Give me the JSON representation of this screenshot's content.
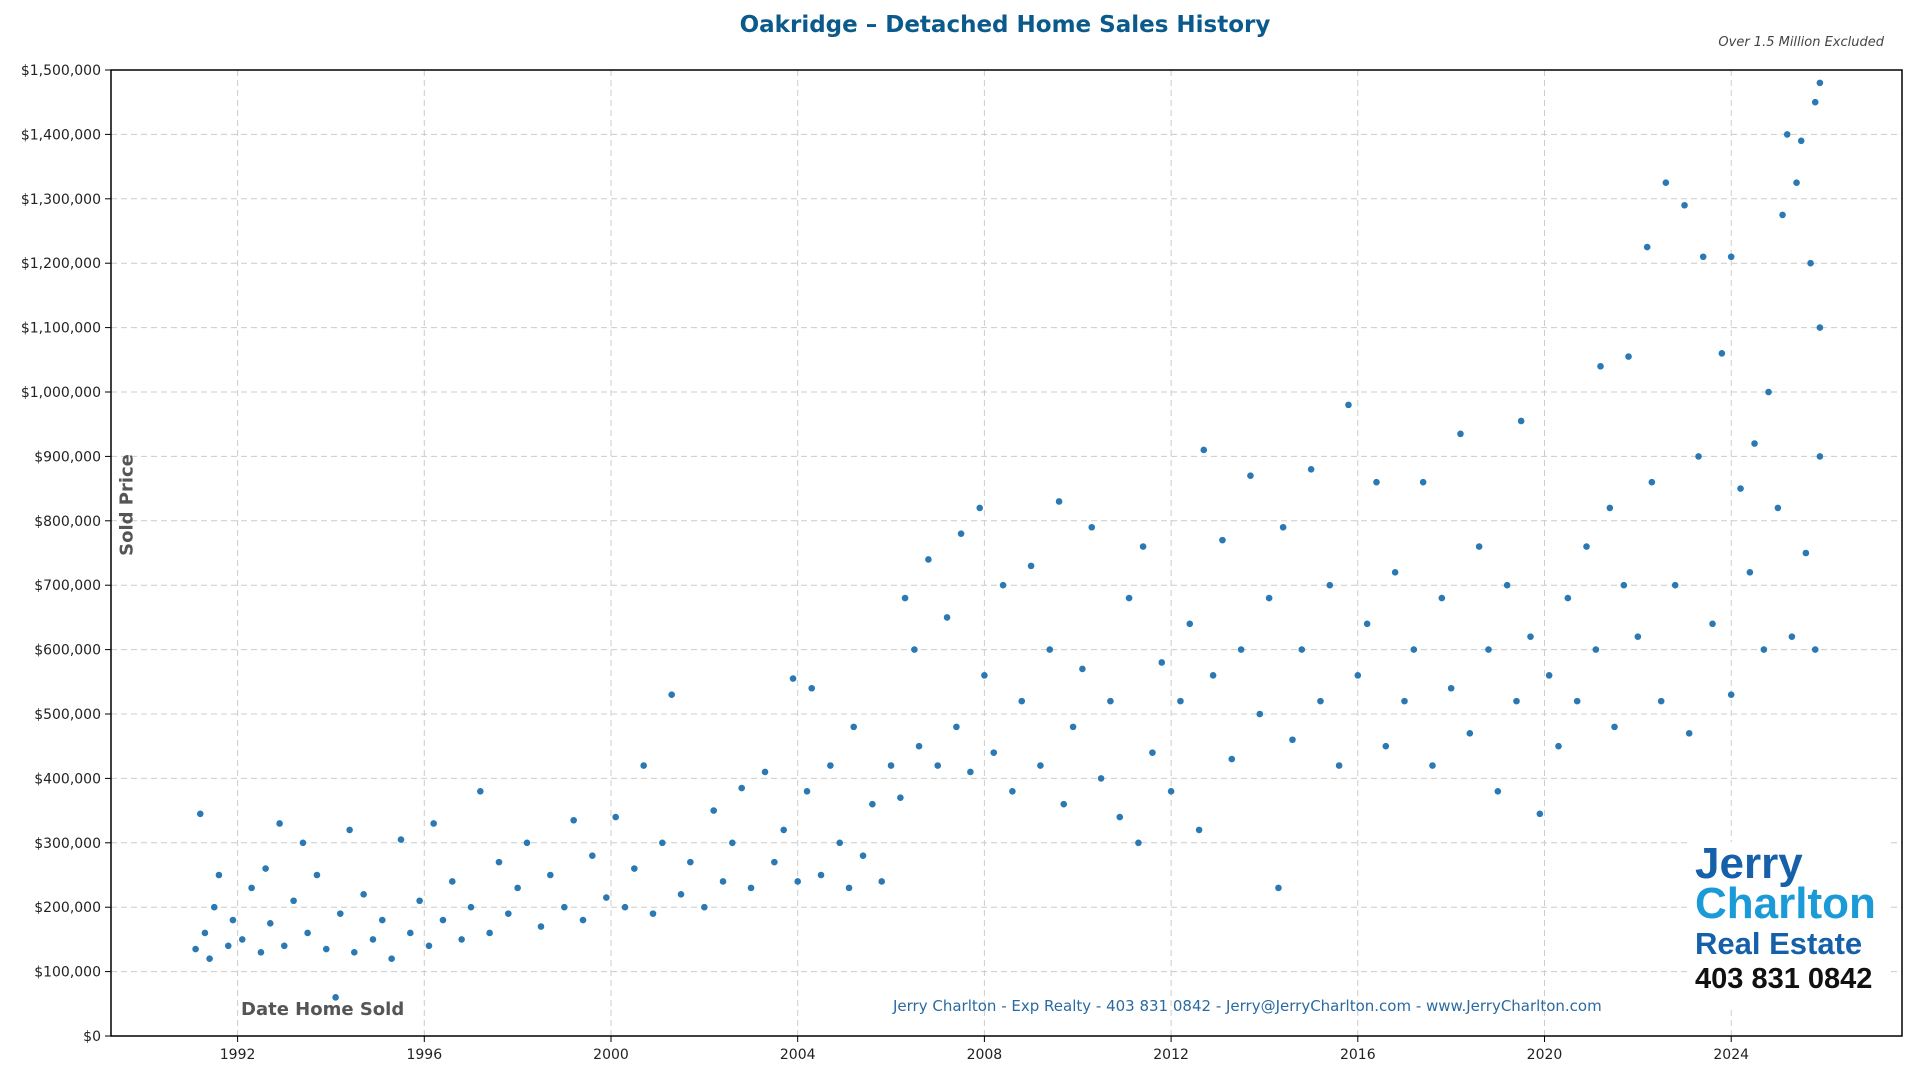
{
  "chart_data": {
    "type": "scatter",
    "title": "Oakridge – Detached Home Sales History",
    "subtitle": "Over 1.5 Million Excluded",
    "xlabel": "Date Home Sold",
    "ylabel": "Sold Price",
    "xlim": [
      1991,
      2027
    ],
    "ylim": [
      0,
      1500000
    ],
    "x_ticks": [
      1992,
      1996,
      2000,
      2004,
      2008,
      2012,
      2016,
      2020,
      2024
    ],
    "y_ticks": [
      "$0",
      "$100,000",
      "$200,000",
      "$300,000",
      "$400,000",
      "$500,000",
      "$600,000",
      "$700,000",
      "$800,000",
      "$900,000",
      "$1,000,000",
      "$1,100,000",
      "$1,200,000",
      "$1,300,000",
      "$1,400,000",
      "$1,500,000"
    ],
    "grid": true,
    "color": "#2a78b4",
    "points": [
      [
        1991.1,
        135000
      ],
      [
        1991.2,
        345000
      ],
      [
        1991.3,
        160000
      ],
      [
        1991.4,
        120000
      ],
      [
        1991.5,
        200000
      ],
      [
        1991.6,
        250000
      ],
      [
        1991.8,
        140000
      ],
      [
        1991.9,
        180000
      ],
      [
        1992.1,
        150000
      ],
      [
        1992.3,
        230000
      ],
      [
        1992.5,
        130000
      ],
      [
        1992.6,
        260000
      ],
      [
        1992.7,
        175000
      ],
      [
        1992.9,
        330000
      ],
      [
        1993.0,
        140000
      ],
      [
        1993.2,
        210000
      ],
      [
        1993.4,
        300000
      ],
      [
        1993.5,
        160000
      ],
      [
        1993.7,
        250000
      ],
      [
        1993.9,
        135000
      ],
      [
        1994.1,
        60000
      ],
      [
        1994.2,
        190000
      ],
      [
        1994.4,
        320000
      ],
      [
        1994.5,
        130000
      ],
      [
        1994.7,
        220000
      ],
      [
        1994.9,
        150000
      ],
      [
        1995.1,
        180000
      ],
      [
        1995.3,
        120000
      ],
      [
        1995.5,
        305000
      ],
      [
        1995.7,
        160000
      ],
      [
        1995.9,
        210000
      ],
      [
        1996.1,
        140000
      ],
      [
        1996.2,
        330000
      ],
      [
        1996.4,
        180000
      ],
      [
        1996.6,
        240000
      ],
      [
        1996.8,
        150000
      ],
      [
        1997.0,
        200000
      ],
      [
        1997.2,
        380000
      ],
      [
        1997.4,
        160000
      ],
      [
        1997.6,
        270000
      ],
      [
        1997.8,
        190000
      ],
      [
        1998.0,
        230000
      ],
      [
        1998.2,
        300000
      ],
      [
        1998.5,
        170000
      ],
      [
        1998.7,
        250000
      ],
      [
        1999.0,
        200000
      ],
      [
        1999.2,
        335000
      ],
      [
        1999.4,
        180000
      ],
      [
        1999.6,
        280000
      ],
      [
        1999.9,
        215000
      ],
      [
        2000.1,
        340000
      ],
      [
        2000.3,
        200000
      ],
      [
        2000.5,
        260000
      ],
      [
        2000.7,
        420000
      ],
      [
        2000.9,
        190000
      ],
      [
        2001.1,
        300000
      ],
      [
        2001.3,
        530000
      ],
      [
        2001.5,
        220000
      ],
      [
        2001.7,
        270000
      ],
      [
        2002.0,
        200000
      ],
      [
        2002.2,
        350000
      ],
      [
        2002.4,
        240000
      ],
      [
        2002.6,
        300000
      ],
      [
        2002.8,
        385000
      ],
      [
        2003.0,
        230000
      ],
      [
        2003.3,
        410000
      ],
      [
        2003.5,
        270000
      ],
      [
        2003.7,
        320000
      ],
      [
        2003.9,
        555000
      ],
      [
        2004.0,
        240000
      ],
      [
        2004.2,
        380000
      ],
      [
        2004.3,
        540000
      ],
      [
        2004.5,
        250000
      ],
      [
        2004.7,
        420000
      ],
      [
        2004.9,
        300000
      ],
      [
        2005.1,
        230000
      ],
      [
        2005.2,
        480000
      ],
      [
        2005.4,
        280000
      ],
      [
        2005.6,
        360000
      ],
      [
        2005.8,
        240000
      ],
      [
        2006.0,
        420000
      ],
      [
        2006.2,
        370000
      ],
      [
        2006.3,
        680000
      ],
      [
        2006.5,
        600000
      ],
      [
        2006.6,
        450000
      ],
      [
        2006.8,
        740000
      ],
      [
        2007.0,
        420000
      ],
      [
        2007.2,
        650000
      ],
      [
        2007.4,
        480000
      ],
      [
        2007.5,
        780000
      ],
      [
        2007.7,
        410000
      ],
      [
        2007.9,
        820000
      ],
      [
        2008.0,
        560000
      ],
      [
        2008.2,
        440000
      ],
      [
        2008.4,
        700000
      ],
      [
        2008.6,
        380000
      ],
      [
        2008.8,
        520000
      ],
      [
        2009.0,
        730000
      ],
      [
        2009.2,
        420000
      ],
      [
        2009.4,
        600000
      ],
      [
        2009.6,
        830000
      ],
      [
        2009.7,
        360000
      ],
      [
        2009.9,
        480000
      ],
      [
        2010.1,
        570000
      ],
      [
        2010.3,
        790000
      ],
      [
        2010.5,
        400000
      ],
      [
        2010.7,
        520000
      ],
      [
        2010.9,
        340000
      ],
      [
        2011.1,
        680000
      ],
      [
        2011.3,
        300000
      ],
      [
        2011.4,
        760000
      ],
      [
        2011.6,
        440000
      ],
      [
        2011.8,
        580000
      ],
      [
        2012.0,
        380000
      ],
      [
        2012.2,
        520000
      ],
      [
        2012.4,
        640000
      ],
      [
        2012.6,
        320000
      ],
      [
        2012.7,
        910000
      ],
      [
        2012.9,
        560000
      ],
      [
        2013.1,
        770000
      ],
      [
        2013.3,
        430000
      ],
      [
        2013.5,
        600000
      ],
      [
        2013.7,
        870000
      ],
      [
        2013.9,
        500000
      ],
      [
        2014.1,
        680000
      ],
      [
        2014.3,
        230000
      ],
      [
        2014.4,
        790000
      ],
      [
        2014.6,
        460000
      ],
      [
        2014.8,
        600000
      ],
      [
        2015.0,
        880000
      ],
      [
        2015.2,
        520000
      ],
      [
        2015.4,
        700000
      ],
      [
        2015.6,
        420000
      ],
      [
        2015.8,
        980000
      ],
      [
        2016.0,
        560000
      ],
      [
        2016.2,
        640000
      ],
      [
        2016.4,
        860000
      ],
      [
        2016.6,
        450000
      ],
      [
        2016.8,
        720000
      ],
      [
        2017.0,
        520000
      ],
      [
        2017.2,
        600000
      ],
      [
        2017.4,
        860000
      ],
      [
        2017.6,
        420000
      ],
      [
        2017.8,
        680000
      ],
      [
        2018.0,
        540000
      ],
      [
        2018.2,
        935000
      ],
      [
        2018.4,
        470000
      ],
      [
        2018.6,
        760000
      ],
      [
        2018.8,
        600000
      ],
      [
        2019.0,
        380000
      ],
      [
        2019.2,
        700000
      ],
      [
        2019.4,
        520000
      ],
      [
        2019.5,
        955000
      ],
      [
        2019.7,
        620000
      ],
      [
        2019.9,
        345000
      ],
      [
        2020.1,
        560000
      ],
      [
        2020.3,
        450000
      ],
      [
        2020.5,
        680000
      ],
      [
        2020.7,
        520000
      ],
      [
        2020.9,
        760000
      ],
      [
        2021.1,
        600000
      ],
      [
        2021.2,
        1040000
      ],
      [
        2021.4,
        820000
      ],
      [
        2021.5,
        480000
      ],
      [
        2021.7,
        700000
      ],
      [
        2021.8,
        1055000
      ],
      [
        2022.0,
        620000
      ],
      [
        2022.2,
        1225000
      ],
      [
        2022.3,
        860000
      ],
      [
        2022.5,
        520000
      ],
      [
        2022.6,
        1325000
      ],
      [
        2022.8,
        700000
      ],
      [
        2023.0,
        1290000
      ],
      [
        2023.1,
        470000
      ],
      [
        2023.3,
        900000
      ],
      [
        2023.4,
        1210000
      ],
      [
        2023.6,
        640000
      ],
      [
        2023.8,
        1060000
      ],
      [
        2024.0,
        530000
      ],
      [
        2024.0,
        1210000
      ],
      [
        2024.2,
        850000
      ],
      [
        2024.4,
        720000
      ],
      [
        2024.5,
        920000
      ],
      [
        2024.7,
        600000
      ],
      [
        2024.8,
        1000000
      ],
      [
        2025.0,
        820000
      ],
      [
        2025.1,
        1275000
      ],
      [
        2025.2,
        1400000
      ],
      [
        2025.3,
        620000
      ],
      [
        2025.4,
        1325000
      ],
      [
        2025.5,
        1390000
      ],
      [
        2025.6,
        750000
      ],
      [
        2025.7,
        1200000
      ],
      [
        2025.8,
        1450000
      ],
      [
        2025.9,
        1480000
      ],
      [
        2025.9,
        900000
      ],
      [
        2025.8,
        600000
      ],
      [
        2025.9,
        1100000
      ]
    ]
  },
  "footer": "Jerry Charlton - Exp Realty - 403 831 0842 - Jerry@JerryCharlton.com - www.JerryCharlton.com",
  "logo": {
    "line1": "Jerry",
    "line2": "Charlton",
    "line3": "Real Estate",
    "phone": "403 831 0842"
  }
}
